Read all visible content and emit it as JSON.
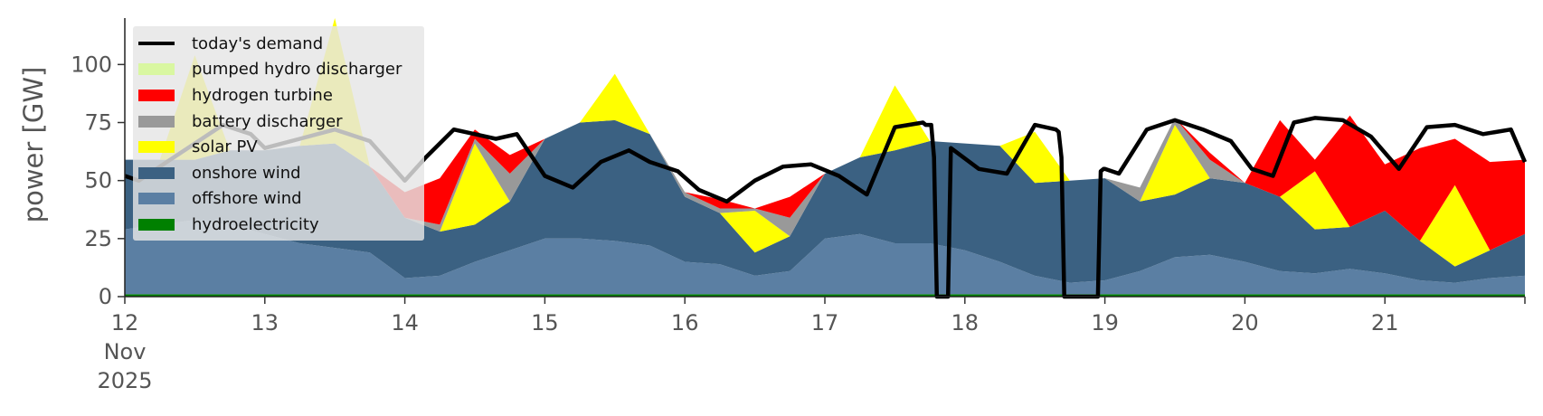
{
  "chart_data": {
    "type": "area",
    "stacked": true,
    "ylabel": "power [GW]",
    "xlabel": "",
    "ylim": [
      0,
      120
    ],
    "yticks": [
      0,
      25,
      50,
      75,
      100
    ],
    "xlim": [
      12,
      22
    ],
    "xticks": [
      12,
      13,
      14,
      15,
      16,
      17,
      18,
      19,
      20,
      21
    ],
    "xtick_labels": [
      "12",
      "13",
      "14",
      "15",
      "16",
      "17",
      "18",
      "19",
      "20",
      "21"
    ],
    "xtick_sublabels": [
      "Nov",
      "2025"
    ],
    "grid": false,
    "legend_position": "top-left",
    "x": [
      12.0,
      12.25,
      12.5,
      12.75,
      13.0,
      13.25,
      13.5,
      13.75,
      14.0,
      14.25,
      14.5,
      14.75,
      15.0,
      15.25,
      15.5,
      15.75,
      16.0,
      16.25,
      16.5,
      16.75,
      17.0,
      17.25,
      17.5,
      17.75,
      18.0,
      18.25,
      18.5,
      18.75,
      19.0,
      19.25,
      19.5,
      19.75,
      20.0,
      20.25,
      20.5,
      20.75,
      21.0,
      21.25,
      21.5,
      21.75,
      22.0
    ],
    "series": [
      {
        "name": "hydroelectricity",
        "color": "#008000",
        "values": [
          1,
          1,
          1,
          1,
          1,
          1,
          1,
          1,
          1,
          1,
          1,
          1,
          1,
          1,
          1,
          1,
          1,
          1,
          1,
          1,
          1,
          1,
          1,
          1,
          1,
          1,
          1,
          1,
          1,
          1,
          1,
          1,
          1,
          1,
          1,
          1,
          1,
          1,
          1,
          1,
          1
        ]
      },
      {
        "name": "offshore wind",
        "color": "#5b7fa3",
        "values": [
          28,
          30,
          32,
          30,
          26,
          22,
          20,
          18,
          7,
          8,
          14,
          19,
          24,
          24,
          23,
          21,
          14,
          13,
          8,
          10,
          24,
          26,
          22,
          22,
          19,
          14,
          8,
          5,
          6,
          10,
          16,
          17,
          14,
          10,
          9,
          11,
          9,
          6,
          5,
          7,
          8
        ]
      },
      {
        "name": "onshore wind",
        "color": "#3b6182",
        "values": [
          30,
          28,
          26,
          32,
          36,
          42,
          45,
          37,
          26,
          19,
          16,
          21,
          43,
          50,
          52,
          48,
          28,
          22,
          10,
          15,
          28,
          33,
          40,
          44,
          46,
          50,
          40,
          44,
          44,
          30,
          27,
          33,
          34,
          32,
          19,
          18,
          27,
          17,
          7,
          12,
          18
        ]
      },
      {
        "name": "solar PV",
        "color": "#ffff00",
        "values": [
          0,
          0,
          45,
          0,
          0,
          0,
          55,
          0,
          0,
          0,
          35,
          0,
          0,
          0,
          20,
          0,
          0,
          0,
          18,
          0,
          0,
          0,
          28,
          0,
          0,
          0,
          22,
          0,
          0,
          0,
          30,
          0,
          0,
          0,
          25,
          0,
          0,
          0,
          35,
          0,
          0
        ]
      },
      {
        "name": "battery discharger",
        "color": "#999999",
        "values": [
          0,
          0,
          0,
          0,
          0,
          0,
          0,
          0,
          0,
          3,
          2,
          12,
          0,
          0,
          0,
          0,
          2,
          2,
          1,
          8,
          0,
          0,
          0,
          0,
          0,
          0,
          0,
          0,
          0,
          6,
          3,
          8,
          0,
          0,
          0,
          0,
          0,
          0,
          0,
          0,
          0
        ]
      },
      {
        "name": "hydrogen turbine",
        "color": "#ff0000",
        "values": [
          0,
          0,
          0,
          0,
          0,
          0,
          0,
          0,
          11,
          20,
          4,
          8,
          0,
          0,
          0,
          0,
          0,
          4,
          0,
          9,
          0,
          0,
          0,
          0,
          0,
          0,
          0,
          0,
          0,
          0,
          0,
          3,
          0,
          33,
          5,
          48,
          20,
          40,
          20,
          38,
          32
        ]
      },
      {
        "name": "pumped hydro discharger",
        "color": "#d9f7a1",
        "values": [
          0,
          0,
          0,
          0,
          0,
          0,
          0,
          0,
          0,
          0,
          0,
          0,
          0,
          0,
          0,
          0,
          0,
          0,
          0,
          0,
          0,
          0,
          0,
          0,
          0,
          0,
          0,
          0,
          0,
          0,
          0,
          0,
          0,
          0,
          0,
          0,
          0,
          0,
          0,
          0,
          0
        ]
      }
    ],
    "demand": {
      "name": "today's demand",
      "color": "#000000",
      "x": [
        12.0,
        12.1,
        12.3,
        12.5,
        12.7,
        12.9,
        13.0,
        13.25,
        13.5,
        13.75,
        14.0,
        14.15,
        14.35,
        14.5,
        14.65,
        14.8,
        15.0,
        15.2,
        15.4,
        15.6,
        15.75,
        15.95,
        16.1,
        16.3,
        16.5,
        16.7,
        16.9,
        17.1,
        17.3,
        17.5,
        17.7,
        17.72,
        17.74,
        17.76,
        17.78,
        17.8,
        17.82,
        17.84,
        17.86,
        17.88,
        17.9,
        18.1,
        18.3,
        18.5,
        18.65,
        18.67,
        18.69,
        18.71,
        18.73,
        18.75,
        18.9,
        18.95,
        18.97,
        18.99,
        19.0,
        19.1,
        19.3,
        19.5,
        19.7,
        19.9,
        20.05,
        20.2,
        20.35,
        20.5,
        20.7,
        20.9,
        21.1,
        21.3,
        21.5,
        21.7,
        21.9,
        22.0
      ],
      "values": [
        52,
        50,
        58,
        66,
        74,
        70,
        64,
        68,
        72,
        67,
        50,
        60,
        72,
        70,
        68,
        70,
        52,
        47,
        58,
        63,
        58,
        54,
        46,
        41,
        50,
        56,
        57,
        52,
        44,
        73,
        75,
        74,
        74,
        74,
        60,
        0,
        0,
        0,
        0,
        0,
        64,
        55,
        53,
        74,
        72,
        71,
        60,
        0,
        0,
        0,
        0,
        0,
        54,
        55,
        55,
        53,
        72,
        76,
        72,
        67,
        55,
        52,
        75,
        77,
        76,
        69,
        55,
        73,
        74,
        70,
        72,
        58
      ]
    }
  }
}
